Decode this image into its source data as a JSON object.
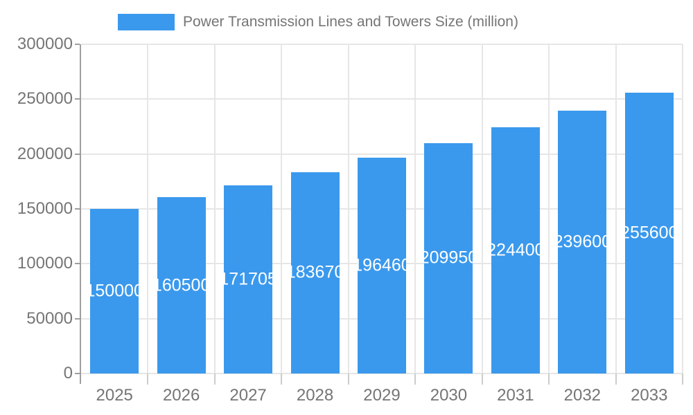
{
  "legend": {
    "label": "Power Transmission Lines and Towers Size (million)",
    "swatch_color": "#3a99ed"
  },
  "chart_data": {
    "type": "bar",
    "title": "Power Transmission Lines and Towers Size (million)",
    "categories": [
      "2025",
      "2026",
      "2027",
      "2028",
      "2029",
      "2030",
      "2031",
      "2032",
      "2033"
    ],
    "values": [
      150000,
      160500,
      171705,
      183670,
      196460,
      209950,
      224400,
      239600,
      255600
    ],
    "bar_labels": [
      "150000",
      "160500",
      "171705",
      "183670",
      "196460",
      "209950",
      "224400",
      "239600",
      "255600"
    ],
    "xlabel": "",
    "ylabel": "",
    "ylim": [
      0,
      300000
    ],
    "yticks": [
      0,
      50000,
      100000,
      150000,
      200000,
      250000,
      300000
    ],
    "ytick_labels": [
      "0",
      "50000",
      "100000",
      "150000",
      "200000",
      "250000",
      "300000"
    ],
    "grid": true,
    "legend_position": "top-left",
    "value_labels": "inside-center-white",
    "colors": {
      "bar": "#3a99ed",
      "axis_text": "#757575",
      "grid_line": "#e6e6e6",
      "axis_line": "#9e9e9e",
      "minor_tick": "#cccccc",
      "value_label": "#ffffff",
      "background": "#ffffff"
    }
  }
}
